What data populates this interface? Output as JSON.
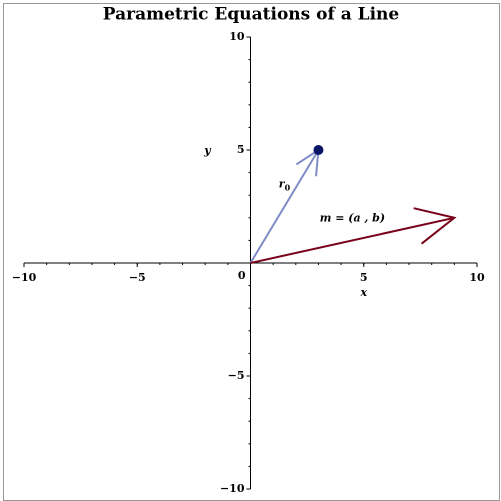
{
  "chart_data": {
    "type": "vector",
    "title": "Parametric Equations of a Line",
    "xlabel": "x",
    "ylabel": "y",
    "xlim": [
      -10,
      10
    ],
    "ylim": [
      -10,
      10
    ],
    "xticks": [
      {
        "value": -10,
        "label": "−10"
      },
      {
        "value": -5,
        "label": "−5"
      },
      0,
      5,
      10
    ],
    "yticks": [
      {
        "value": -10,
        "label": "−10"
      },
      {
        "value": -5,
        "label": "−5"
      },
      5,
      10
    ],
    "minor_tick_step": 1,
    "vectors": [
      {
        "label": "r",
        "subscript": "0",
        "color": "#7f8cc6",
        "from": [
          0,
          0
        ],
        "to": [
          3,
          5
        ]
      },
      {
        "label": "m = (a , b)",
        "color": "#780018",
        "from": [
          0,
          0
        ],
        "to": [
          9,
          2
        ]
      }
    ],
    "points": [
      {
        "x": 3,
        "y": 5,
        "color": "#0a1466"
      }
    ]
  }
}
